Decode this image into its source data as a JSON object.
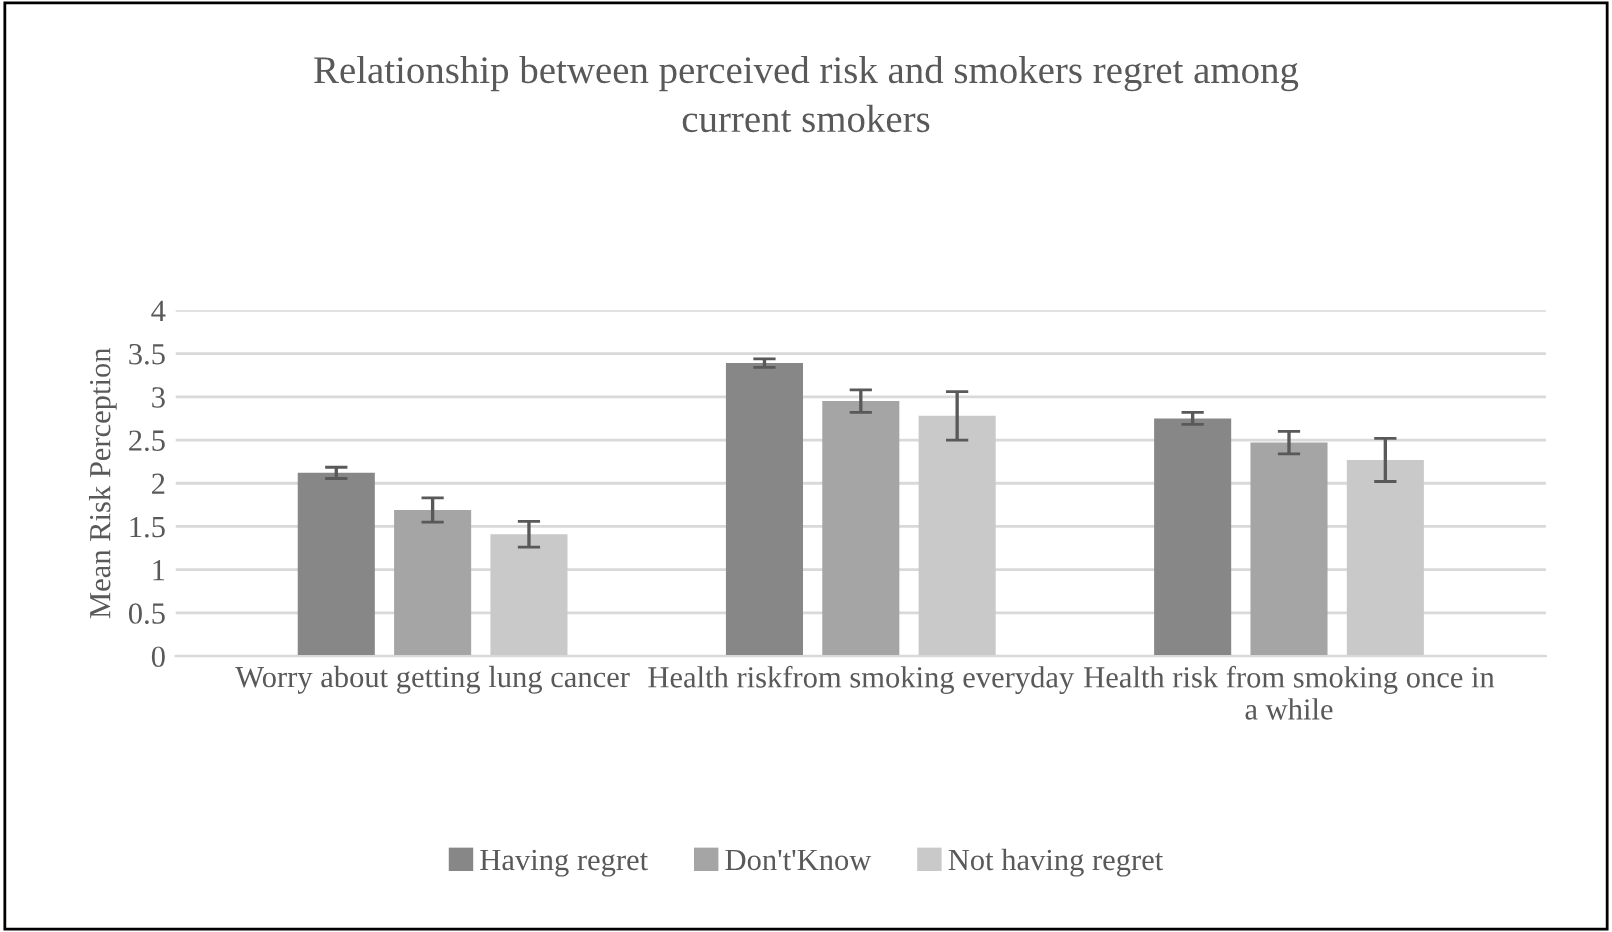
{
  "chart_data": {
    "type": "bar",
    "title": "Relationship between perceived risk and smokers regret among current smokers",
    "ylabel": "Mean Risk Perception",
    "categories": [
      "Worry about getting lung cancer",
      "Health riskfrom smoking everyday",
      "Health risk from smoking once in a while"
    ],
    "series": [
      {
        "name": "Having regret",
        "color": "#878787",
        "values": [
          2.12,
          3.39,
          2.75
        ],
        "errors": [
          0.065,
          0.05,
          0.07
        ]
      },
      {
        "name": "Don't'Know",
        "color": "#a5a5a5",
        "values": [
          1.69,
          2.95,
          2.47
        ],
        "errors": [
          0.14,
          0.13,
          0.13
        ]
      },
      {
        "name": "Not having regret",
        "color": "#c9c9c9",
        "values": [
          1.41,
          2.78,
          2.27
        ],
        "errors": [
          0.15,
          0.28,
          0.25
        ]
      }
    ],
    "ylim": [
      0,
      4
    ],
    "yticks": [
      0,
      0.5,
      1,
      1.5,
      2,
      2.5,
      3,
      3.5,
      4
    ],
    "grid": "y",
    "legend": "bottom"
  }
}
